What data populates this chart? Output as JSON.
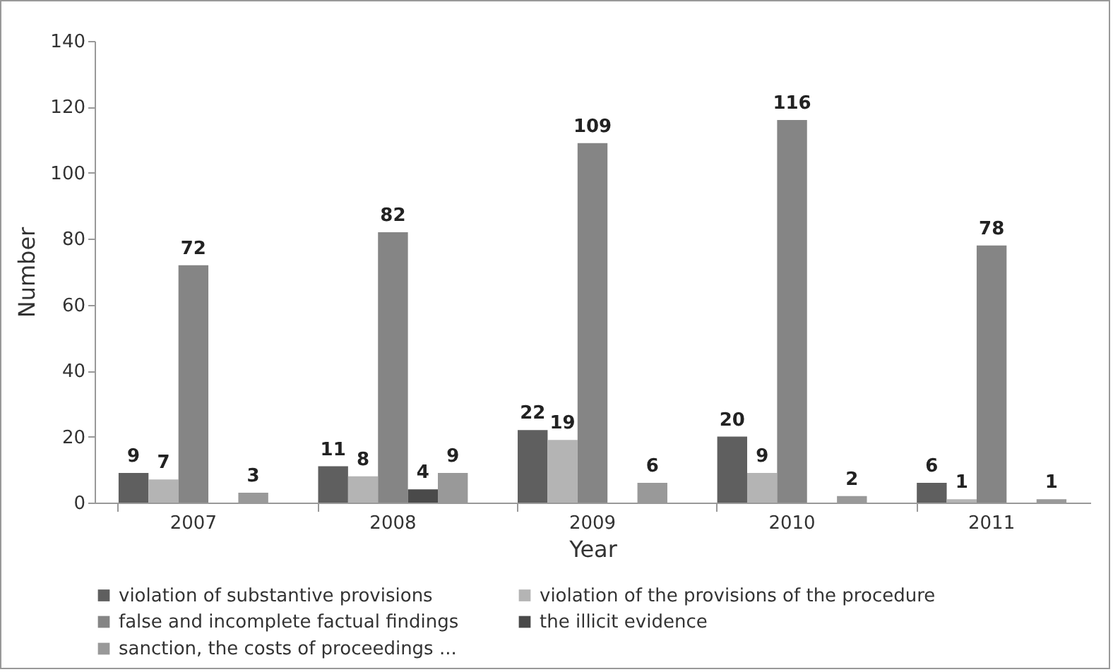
{
  "chart_data": {
    "type": "bar",
    "xlabel": "Year",
    "ylabel": "Number",
    "categories": [
      "2007",
      "2008",
      "2009",
      "2010",
      "2011"
    ],
    "series": [
      {
        "name": "violation of substantive provisions",
        "color": "#5f5f5f",
        "values": [
          9,
          11,
          22,
          20,
          6
        ]
      },
      {
        "name": "violation of the provisions of the procedure",
        "color": "#b4b4b4",
        "values": [
          7,
          8,
          19,
          9,
          1
        ]
      },
      {
        "name": "false and incomplete factual findings",
        "color": "#858585",
        "values": [
          72,
          82,
          109,
          116,
          78
        ]
      },
      {
        "name": "the illicit evidence",
        "color": "#4a4a4a",
        "values": [
          null,
          4,
          null,
          null,
          null
        ]
      },
      {
        "name": "sanction, the costs of proceedings ...",
        "color": "#999999",
        "values": [
          3,
          9,
          6,
          2,
          1
        ]
      }
    ],
    "ylim": [
      0,
      140
    ],
    "yticks": [
      0,
      20,
      40,
      60,
      80,
      100,
      120,
      140
    ],
    "grid": false,
    "legend": "bottom",
    "data_labels": true
  }
}
